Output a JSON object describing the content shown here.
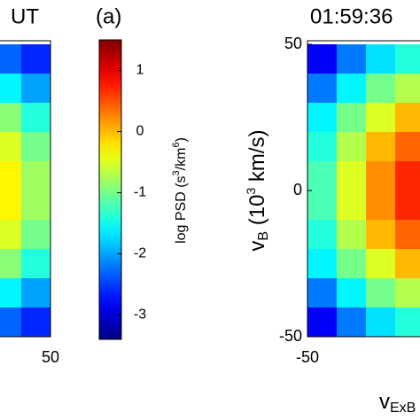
{
  "chart_data": [
    {
      "type": "heatmap",
      "title": "UT",
      "x": [
        35,
        45
      ],
      "y": [
        45,
        35,
        25,
        15,
        5,
        -5,
        -15,
        -25,
        -35,
        -45
      ],
      "values": [
        [
          -2.3,
          -2.6
        ],
        [
          -1.6,
          -2.0
        ],
        [
          -0.9,
          -1.4
        ],
        [
          -0.5,
          -1.0
        ],
        [
          -0.3,
          -0.8
        ],
        [
          -0.3,
          -0.8
        ],
        [
          -0.5,
          -1.0
        ],
        [
          -0.9,
          -1.4
        ],
        [
          -1.6,
          -2.0
        ],
        [
          -2.3,
          -2.6
        ]
      ],
      "xlim": [
        -50,
        50
      ],
      "ylim": [
        -50,
        50
      ],
      "xticks": [
        50
      ],
      "colormap": "jet",
      "clim": [
        -3.4,
        1.5
      ]
    },
    {
      "type": "heatmap",
      "title": "01:59:36",
      "annotation": "(a)",
      "xlabel": [
        "v",
        "ExB"
      ],
      "ylabel": [
        "v",
        "B",
        " (10",
        "3",
        " km/s)"
      ],
      "x": [
        -45,
        -35,
        -25,
        -15
      ],
      "y": [
        45,
        35,
        25,
        15,
        5,
        -5,
        -15,
        -25,
        -35,
        -45
      ],
      "values": [
        [
          -2.8,
          -2.2,
          -1.7,
          -1.4
        ],
        [
          -2.2,
          -1.6,
          -1.0,
          -0.7
        ],
        [
          -1.6,
          -1.0,
          -0.5,
          0.0
        ],
        [
          -1.4,
          -0.7,
          0.0,
          0.4
        ],
        [
          -1.2,
          -0.5,
          0.2,
          0.7
        ],
        [
          -1.2,
          -0.5,
          0.2,
          0.7
        ],
        [
          -1.4,
          -0.7,
          0.0,
          0.4
        ],
        [
          -1.6,
          -1.0,
          -0.5,
          0.0
        ],
        [
          -2.2,
          -1.6,
          -1.0,
          -0.7
        ],
        [
          -2.8,
          -2.2,
          -1.7,
          -1.4
        ]
      ],
      "xlim": [
        -50,
        50
      ],
      "ylim": [
        -50,
        50
      ],
      "xticks": [
        -50
      ],
      "yticks": [
        -50,
        0,
        50
      ],
      "colormap": "jet",
      "clim": [
        -3.4,
        1.5
      ],
      "colorbar": {
        "label": [
          "log PSD (s",
          "3",
          "/km",
          "6",
          ")"
        ],
        "ticks": [
          -3,
          -2,
          -1,
          0,
          1
        ]
      }
    }
  ]
}
